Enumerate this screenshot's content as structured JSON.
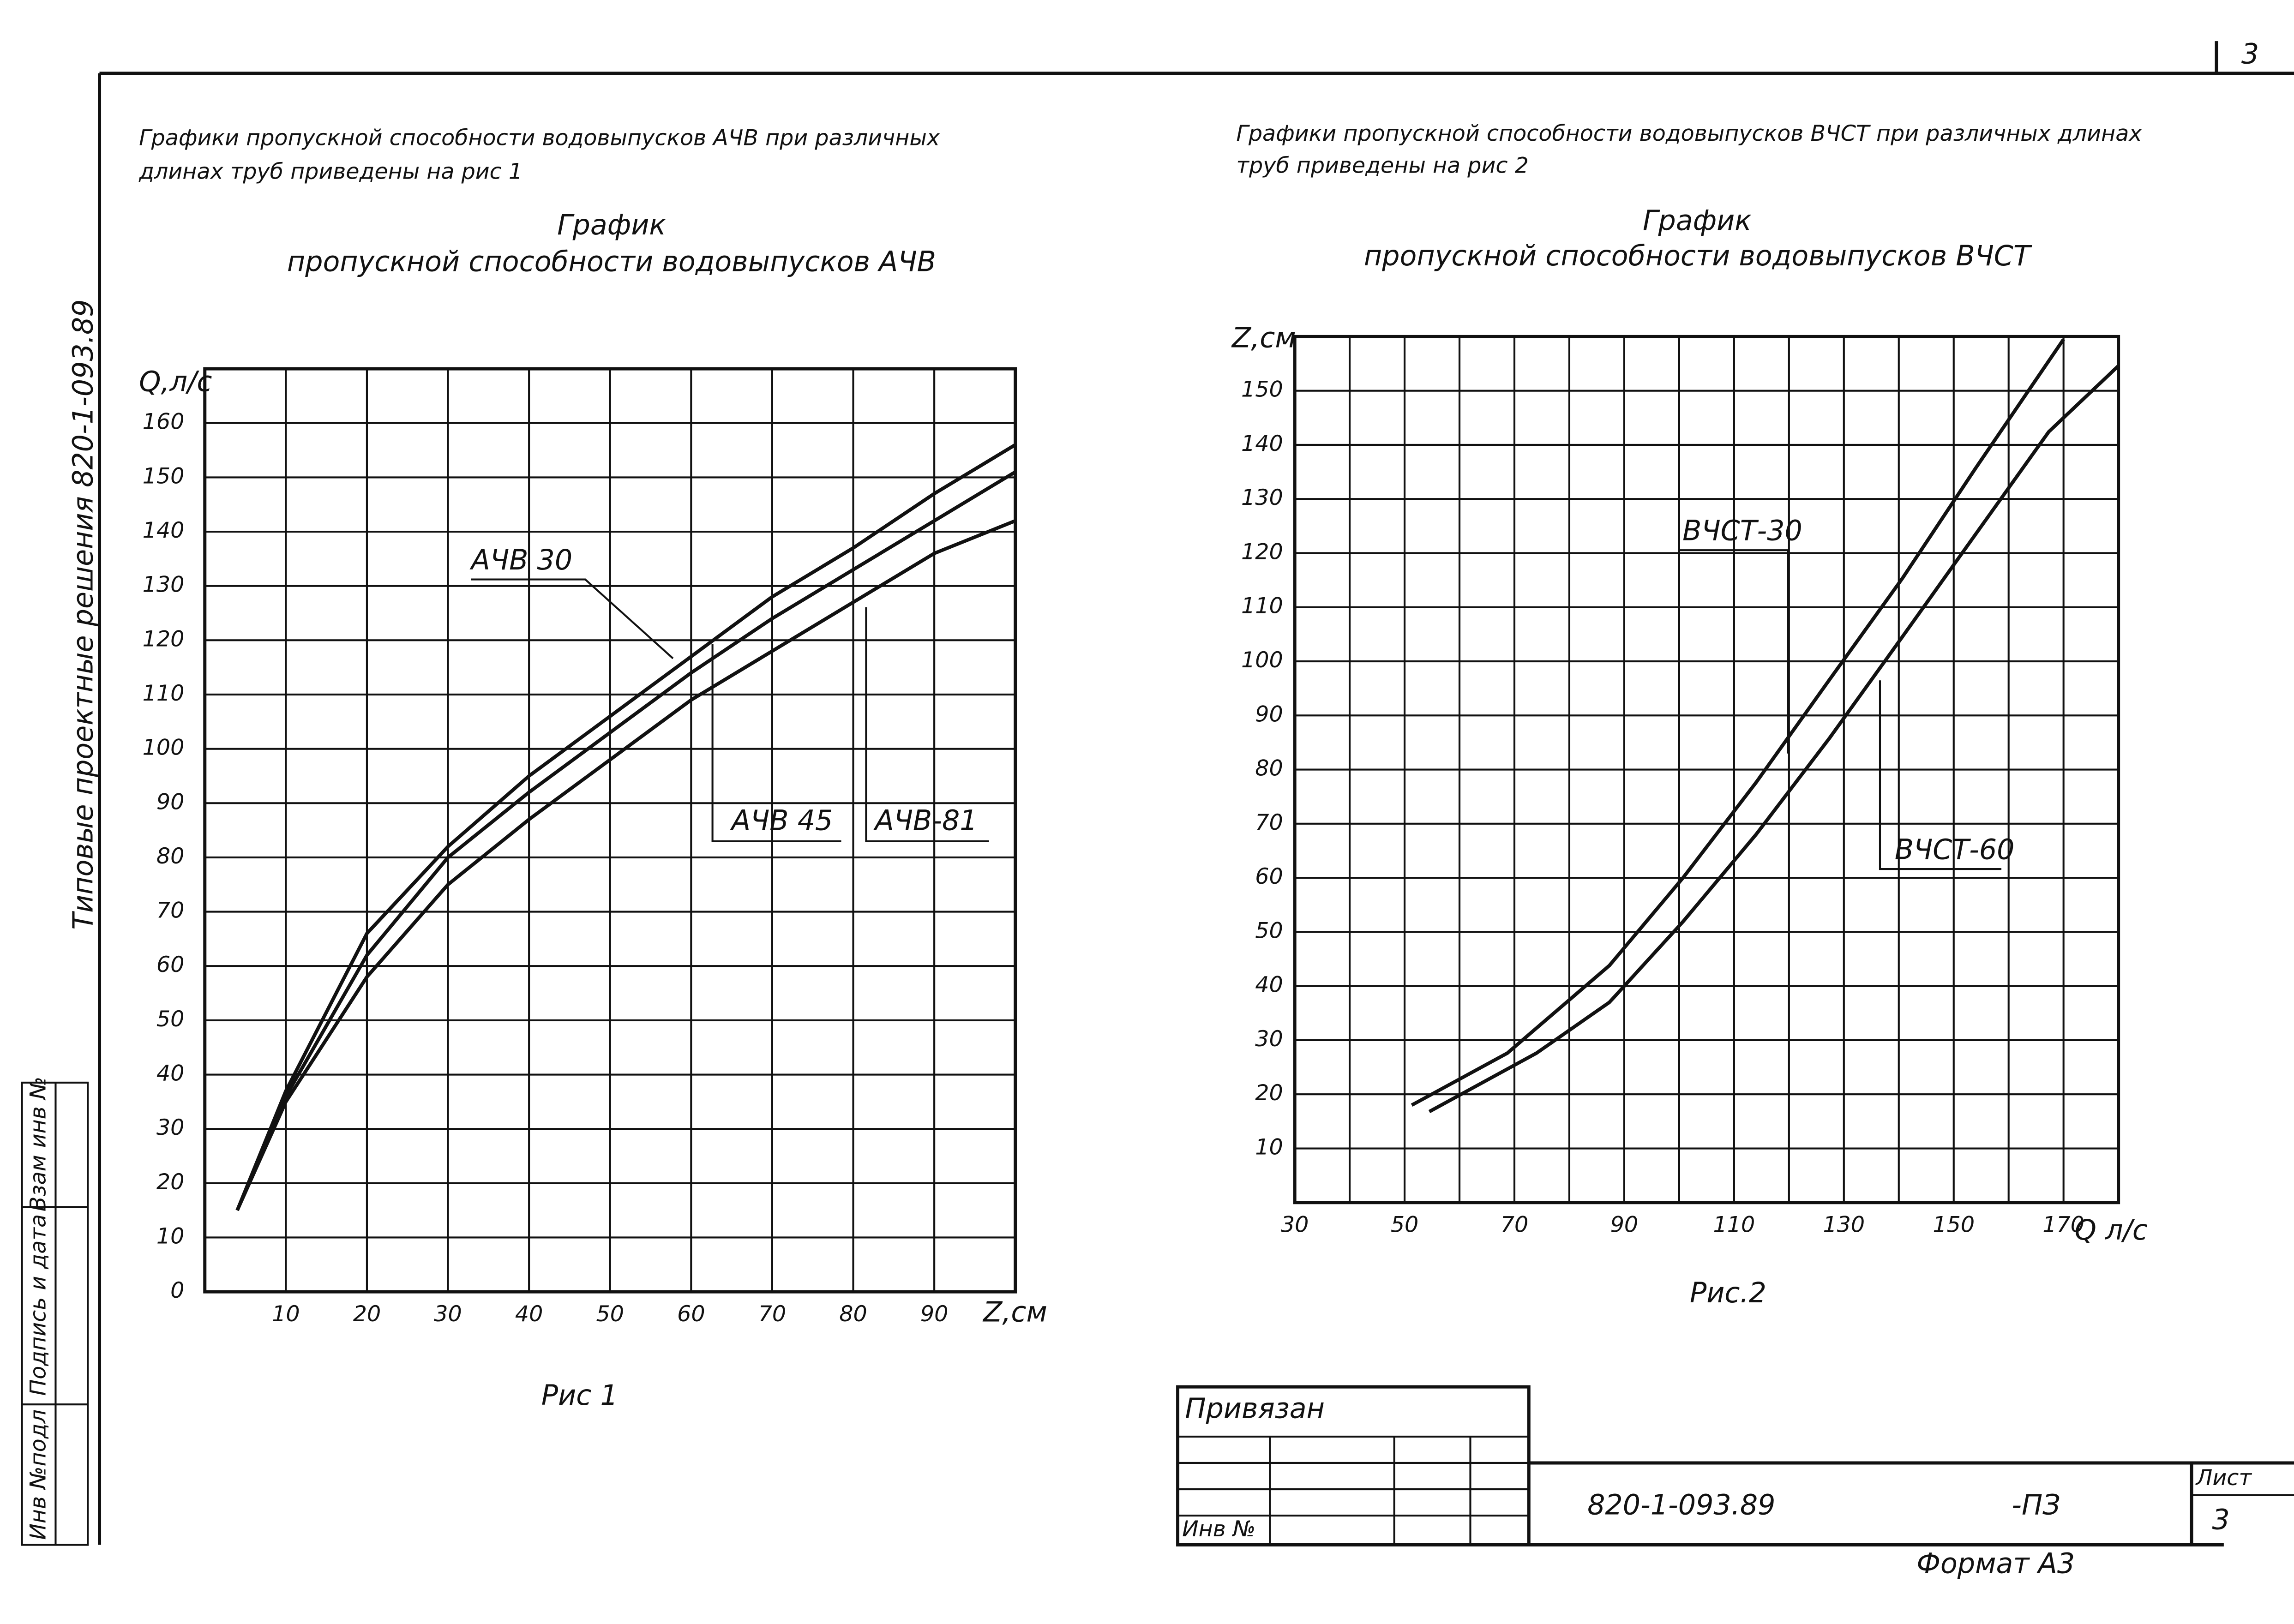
{
  "side_text": "Типовые проектные решения 820-1-093.89",
  "stamp": {
    "cells": [
      "Инв №подл",
      "Подпись и дата",
      "Взам инв №"
    ]
  },
  "page_number": "3",
  "left_intro": [
    "Графики пропускной способности водовыпусков АЧВ при различных",
    "длинах труб приведены на рис 1"
  ],
  "right_intro": [
    "Графики пропускной способности водовыпусков ВЧСТ при различных длинах",
    "труб приведены на рис 2"
  ],
  "chart_data": [
    {
      "type": "line",
      "title": "График",
      "subtitle": "пропускной способности водовыпусков АЧВ",
      "caption": "Рис 1",
      "x_label": "Z,см",
      "y_label": "Q,л/с",
      "xlim": [
        0,
        100
      ],
      "ylim": [
        0,
        170
      ],
      "xticks": [
        10,
        20,
        30,
        40,
        50,
        60,
        70,
        80,
        90
      ],
      "yticks": [
        0,
        10,
        20,
        30,
        40,
        50,
        60,
        70,
        80,
        90,
        100,
        110,
        120,
        130,
        140,
        150,
        160
      ],
      "grid": true,
      "series": [
        {
          "name": "АЧВ 30",
          "color": "#111111",
          "x": [
            4,
            10,
            20,
            30,
            40,
            50,
            60,
            70,
            80,
            90,
            100
          ],
          "values": [
            15,
            37,
            66,
            82,
            95,
            106,
            117,
            128,
            137,
            147,
            156
          ]
        },
        {
          "name": "АЧВ 45",
          "color": "#111111",
          "x": [
            4,
            10,
            20,
            30,
            40,
            50,
            60,
            70,
            80,
            90,
            100
          ],
          "values": [
            15,
            36,
            62,
            80,
            92,
            103,
            114,
            124,
            133,
            142,
            151
          ]
        },
        {
          "name": "АЧВ-81",
          "color": "#111111",
          "x": [
            4,
            10,
            20,
            30,
            40,
            50,
            60,
            70,
            80,
            90,
            100
          ],
          "values": [
            15,
            35,
            58,
            75,
            87,
            98,
            109,
            118,
            127,
            136,
            142
          ]
        }
      ]
    },
    {
      "type": "line",
      "title": "График",
      "subtitle": "пропускной способности водовыпусков ВЧСТ",
      "caption": "Рис.2",
      "x_label": "Q л/с",
      "y_label": "Z,см",
      "xlim": [
        30,
        180
      ],
      "ylim": [
        0,
        160
      ],
      "xticks": [
        30,
        50,
        70,
        90,
        110,
        130,
        150,
        170
      ],
      "yticks": [
        10,
        20,
        30,
        40,
        50,
        60,
        70,
        80,
        90,
        100,
        110,
        120,
        130,
        140,
        150
      ],
      "grid": true,
      "series": [
        {
          "name": "ВЧСТ-30",
          "color": "#111111",
          "x": [
            51.3,
            68.7,
            87.3,
            100.7,
            114,
            127.3,
            140.7,
            154,
            170
          ],
          "values": [
            18,
            27.6,
            43.8,
            60,
            77.6,
            96.5,
            115.4,
            135.7,
            159.5
          ]
        },
        {
          "name": "ВЧСТ-60",
          "color": "#111111",
          "x": [
            54.5,
            74,
            87.3,
            100.7,
            114,
            127.3,
            140.7,
            154,
            167.3,
            180
          ],
          "values": [
            16.8,
            27.6,
            37,
            51.9,
            68,
            85.7,
            104.6,
            123.5,
            142.4,
            154.6
          ]
        }
      ]
    }
  ],
  "title_block": {
    "attached": "Привязан",
    "inventory": "Инв №",
    "code": "820-1-093.89",
    "doc": "-ПЗ",
    "sheet_label": "Лист",
    "sheet": "3",
    "format": "Формат А3"
  }
}
